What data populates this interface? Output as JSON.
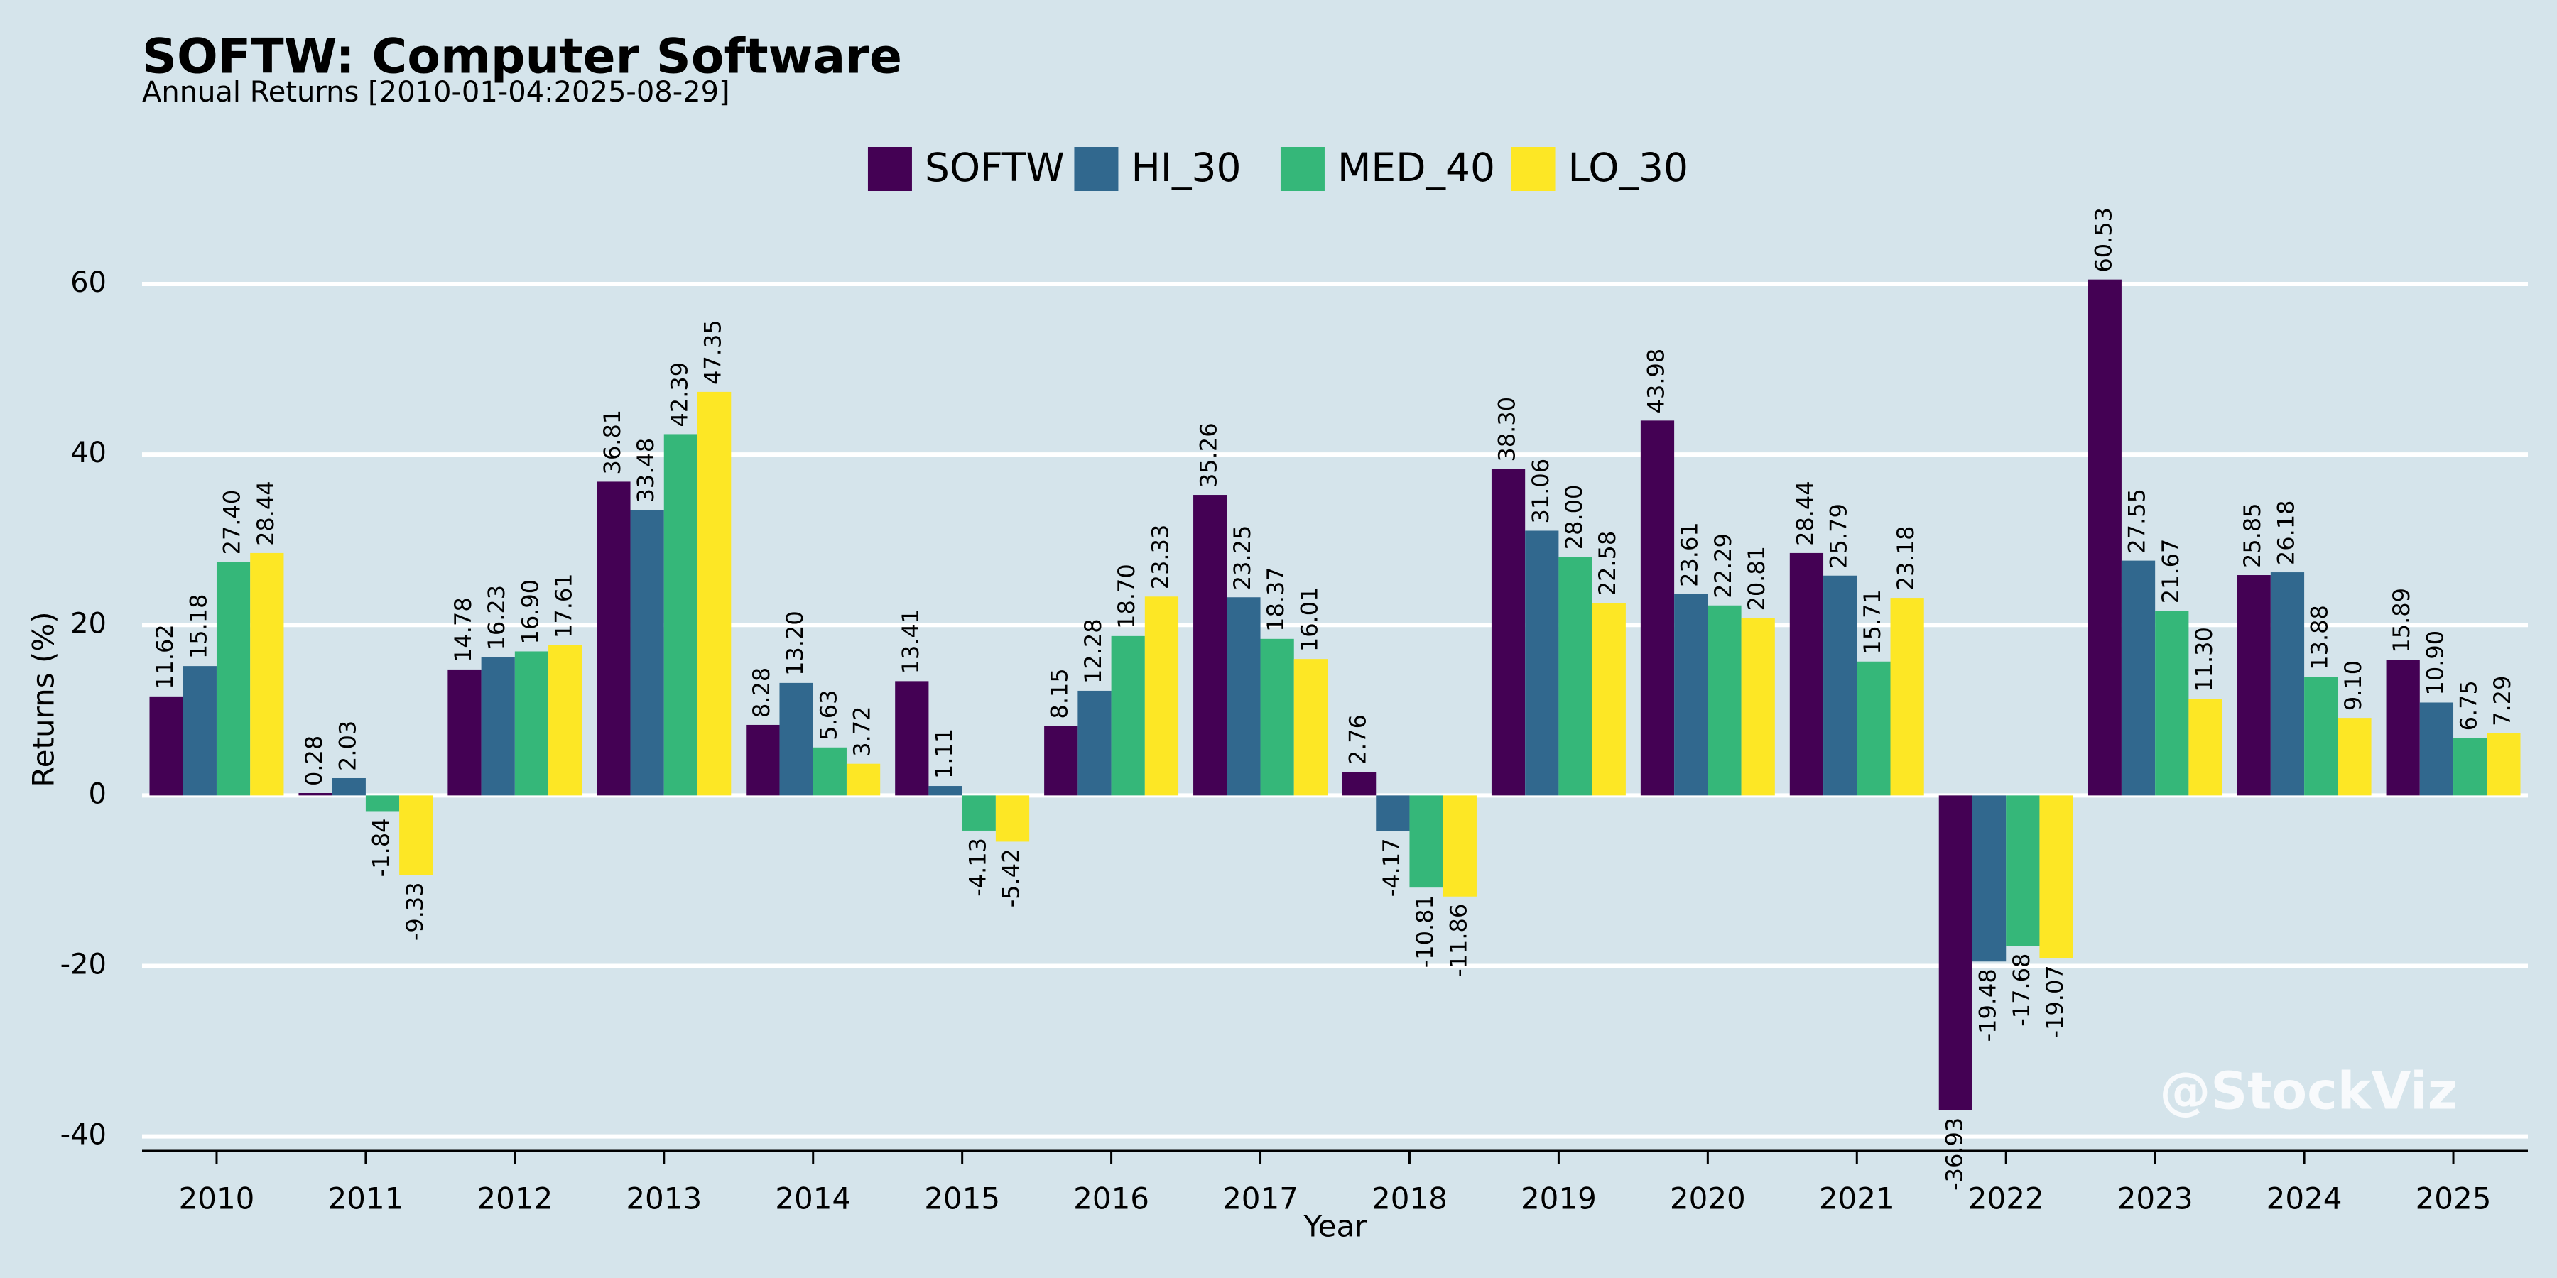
{
  "chart_data": {
    "type": "bar",
    "title": "SOFTW: Computer Software",
    "subtitle": "Annual Returns [2010-01-04:2025-08-29]",
    "x_label": "Year",
    "y_label": "Returns (%)",
    "watermark": "@StockViz",
    "categories": [
      "2010",
      "2011",
      "2012",
      "2013",
      "2014",
      "2015",
      "2016",
      "2017",
      "2018",
      "2019",
      "2020",
      "2021",
      "2022",
      "2023",
      "2024",
      "2025"
    ],
    "series": [
      {
        "name": "SOFTW",
        "color": "#440154",
        "values": [
          11.62,
          0.28,
          14.78,
          36.81,
          8.28,
          13.41,
          8.15,
          35.26,
          2.76,
          38.3,
          43.98,
          28.44,
          -36.93,
          60.53,
          25.85,
          15.89
        ],
        "value_labels": [
          "11.62",
          "0.28",
          "14.78",
          "36.81",
          "8.28",
          "13.41",
          "8.15",
          "35.26",
          "2.76",
          "38.30",
          "43.98",
          "28.44",
          "-36.93",
          "60.53",
          "25.85",
          "15.89"
        ]
      },
      {
        "name": "HI_30",
        "color": "#31688e",
        "values": [
          15.18,
          2.03,
          16.23,
          33.48,
          13.2,
          1.11,
          12.28,
          23.25,
          -4.17,
          31.06,
          23.61,
          25.79,
          -19.48,
          27.55,
          26.18,
          10.9
        ],
        "value_labels": [
          "15.18",
          "2.03",
          "16.23",
          "33.48",
          "13.20",
          "1.11",
          "12.28",
          "23.25",
          "-4.17",
          "31.06",
          "23.61",
          "25.79",
          "-19.48",
          "27.55",
          "26.18",
          "10.90"
        ]
      },
      {
        "name": "MED_40",
        "color": "#35b779",
        "values": [
          27.4,
          -1.84,
          16.9,
          42.39,
          5.63,
          -4.13,
          18.7,
          18.37,
          -10.81,
          28.0,
          22.29,
          15.71,
          -17.68,
          21.67,
          13.88,
          6.75
        ],
        "value_labels": [
          "27.40",
          "-1.84",
          "16.90",
          "42.39",
          "5.63",
          "-4.13",
          "18.70",
          "18.37",
          "-10.81",
          "28.00",
          "22.29",
          "15.71",
          "-17.68",
          "21.67",
          "13.88",
          "6.75"
        ]
      },
      {
        "name": "LO_30",
        "color": "#fde725",
        "values": [
          28.44,
          -9.33,
          17.61,
          47.35,
          3.72,
          -5.42,
          23.33,
          16.01,
          -11.86,
          22.58,
          20.81,
          23.18,
          -19.07,
          11.3,
          9.1,
          7.29
        ],
        "value_labels": [
          "28.44",
          "-9.33",
          "17.61",
          "47.35",
          "3.72",
          "-5.42",
          "23.33",
          "16.01",
          "-11.86",
          "22.58",
          "20.81",
          "23.18",
          "-19.07",
          "11.30",
          "9.10",
          "7.29"
        ]
      }
    ],
    "ylim": [
      -41.7,
      65
    ],
    "yticks": [
      -40,
      -20,
      0,
      20,
      40,
      60
    ],
    "grid": true,
    "legend": "top"
  }
}
